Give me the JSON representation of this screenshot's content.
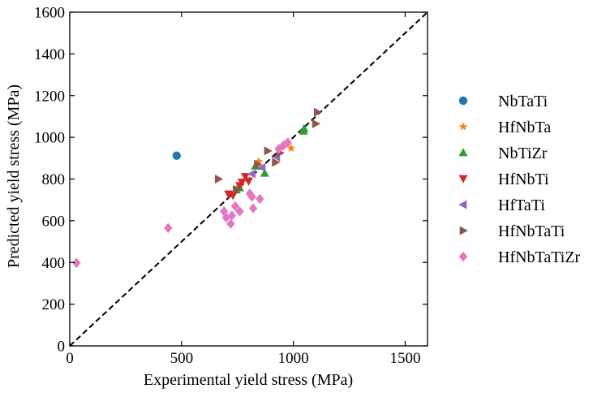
{
  "chart_data": {
    "type": "scatter",
    "title": "",
    "xlabel": "Experimental yield stress (MPa)",
    "ylabel": "Predicted yield stress (MPa)",
    "xlim": [
      0,
      1600
    ],
    "ylim": [
      0,
      1600
    ],
    "xticks": [
      0,
      500,
      1000,
      1500
    ],
    "yticks": [
      0,
      200,
      400,
      600,
      800,
      1000,
      1200,
      1400,
      1600
    ],
    "grid": false,
    "legend_position": "right",
    "reference_line": {
      "style": "dashed",
      "from": [
        0,
        0
      ],
      "to": [
        1600,
        1600
      ],
      "color": "#000000"
    },
    "series": [
      {
        "name": "NbTaTi",
        "marker": "circle",
        "color": "#1f77b4",
        "points": [
          [
            478,
            912
          ]
        ]
      },
      {
        "name": "HfNbTa",
        "marker": "star",
        "color": "#ff7f0e",
        "points": [
          [
            845,
            885
          ],
          [
            990,
            948
          ],
          [
            960,
            965
          ]
        ]
      },
      {
        "name": "NbTiZr",
        "marker": "triangle-up",
        "color": "#2ca02c",
        "points": [
          [
            745,
            748
          ],
          [
            760,
            758
          ],
          [
            830,
            862
          ],
          [
            872,
            828
          ],
          [
            1045,
            1030
          ],
          [
            1048,
            1042
          ]
        ]
      },
      {
        "name": "HfNbTi",
        "marker": "triangle-down",
        "color": "#d62728",
        "points": [
          [
            710,
            728
          ],
          [
            730,
            722
          ],
          [
            760,
            768
          ],
          [
            770,
            785
          ],
          [
            785,
            812
          ],
          [
            800,
            790
          ]
        ]
      },
      {
        "name": "HfTaTi",
        "marker": "triangle-left",
        "color": "#9467bd",
        "points": [
          [
            815,
            825
          ],
          [
            860,
            855
          ],
          [
            925,
            905
          ]
        ]
      },
      {
        "name": "HfNbTaTi",
        "marker": "triangle-right",
        "color": "#8c564b",
        "points": [
          [
            665,
            800
          ],
          [
            745,
            750
          ],
          [
            840,
            870
          ],
          [
            885,
            935
          ],
          [
            920,
            880
          ],
          [
            940,
            925
          ],
          [
            1100,
            1065
          ],
          [
            1108,
            1120
          ]
        ]
      },
      {
        "name": "HfNbTaTiZr",
        "marker": "diamond",
        "color": "#e377c2",
        "points": [
          [
            30,
            398
          ],
          [
            440,
            565
          ],
          [
            690,
            645
          ],
          [
            700,
            615
          ],
          [
            720,
            585
          ],
          [
            725,
            625
          ],
          [
            740,
            670
          ],
          [
            760,
            645
          ],
          [
            805,
            730
          ],
          [
            815,
            715
          ],
          [
            820,
            660
          ],
          [
            850,
            705
          ],
          [
            935,
            945
          ],
          [
            955,
            960
          ],
          [
            975,
            975
          ]
        ]
      }
    ]
  }
}
